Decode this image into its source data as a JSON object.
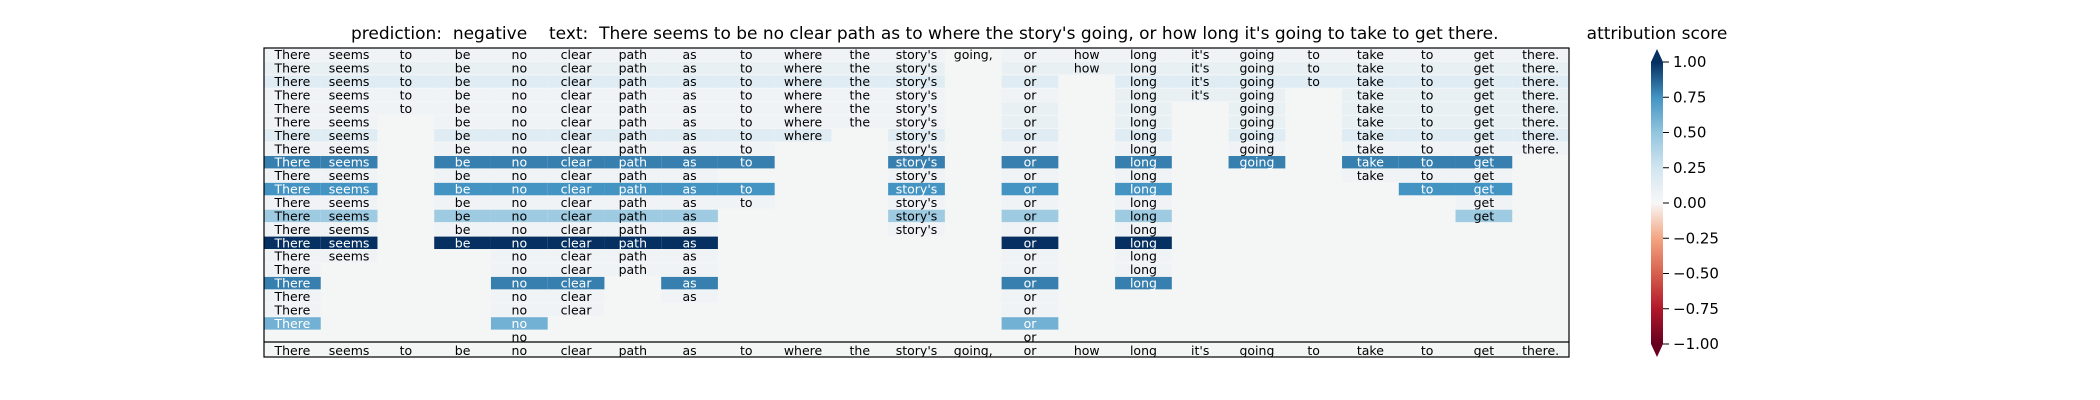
{
  "chart_data": {
    "type": "heatmap",
    "title_prediction": "prediction:  negative",
    "title_text": "text:  There seems to be no clear path as to where the story's going, or how long it's going to take to get there.",
    "colorbar_label": "attribution score",
    "colorbar_ticks": [
      "1.00",
      "0.75",
      "0.50",
      "0.25",
      "0.00",
      "−0.25",
      "−0.50",
      "−0.75",
      "−1.00"
    ],
    "colorbar_tick_values": [
      1.0,
      0.75,
      0.5,
      0.25,
      0.0,
      -0.25,
      -0.5,
      -0.75,
      -1.0
    ],
    "vlim": [
      -1.0,
      1.0
    ],
    "colormap": "RdBu",
    "colors": {
      "max": "#053061",
      "zero": "#f7f7f7",
      "min": "#67001f",
      "background": "#f4f6f6"
    },
    "tokens": [
      "There",
      "seems",
      "to",
      "be",
      "no",
      "clear",
      "path",
      "as",
      "to",
      "where",
      "the",
      "story's",
      "going,",
      "or",
      "how",
      "long",
      "it's",
      "going",
      "to",
      "take",
      "to",
      "get",
      "there."
    ],
    "rows": [
      {
        "shown": [
          1,
          1,
          1,
          1,
          1,
          1,
          1,
          1,
          1,
          1,
          1,
          1,
          1,
          1,
          1,
          1,
          1,
          1,
          1,
          1,
          1,
          1,
          1
        ],
        "scores": [
          0.05,
          0.05,
          0.05,
          0.05,
          0.05,
          0.05,
          0.05,
          0.05,
          0.05,
          0.05,
          0.05,
          0.05,
          0,
          0.05,
          0.05,
          0.05,
          0.05,
          0.05,
          0.05,
          0.05,
          0.05,
          0.05,
          0.05
        ]
      },
      {
        "shown": [
          1,
          1,
          1,
          1,
          1,
          1,
          1,
          1,
          1,
          1,
          1,
          1,
          0,
          1,
          1,
          1,
          1,
          1,
          1,
          1,
          1,
          1,
          1
        ],
        "scores": [
          0.1,
          0.1,
          0.1,
          0.1,
          0.1,
          0.1,
          0.1,
          0.1,
          0.1,
          0.1,
          0.1,
          0.1,
          0,
          0.1,
          0.1,
          0.1,
          0.1,
          0.1,
          0.1,
          0.1,
          0.1,
          0.1,
          0.1
        ]
      },
      {
        "shown": [
          1,
          1,
          1,
          1,
          1,
          1,
          1,
          1,
          1,
          1,
          1,
          1,
          0,
          1,
          0,
          1,
          1,
          1,
          1,
          1,
          1,
          1,
          1
        ],
        "scores": [
          0.15,
          0.15,
          0.15,
          0.15,
          0.15,
          0.15,
          0.15,
          0.15,
          0.15,
          0.15,
          0.15,
          0.15,
          0,
          0.15,
          0,
          0.15,
          0.15,
          0.15,
          0.15,
          0.15,
          0.15,
          0.15,
          0.15
        ]
      },
      {
        "shown": [
          1,
          1,
          1,
          1,
          1,
          1,
          1,
          1,
          1,
          1,
          1,
          1,
          0,
          1,
          0,
          1,
          1,
          1,
          0,
          1,
          1,
          1,
          1
        ],
        "scores": [
          0.05,
          0.05,
          0.05,
          0.05,
          0.05,
          0.05,
          0.05,
          0.05,
          0.05,
          0.05,
          0.05,
          0.05,
          0,
          0.05,
          0,
          0.1,
          0.1,
          0.1,
          0,
          0.1,
          0.1,
          0.1,
          0.1
        ]
      },
      {
        "shown": [
          1,
          1,
          1,
          1,
          1,
          1,
          1,
          1,
          1,
          1,
          1,
          1,
          0,
          1,
          0,
          1,
          0,
          1,
          0,
          1,
          1,
          1,
          1
        ],
        "scores": [
          0.05,
          0.05,
          0.05,
          0.05,
          0.05,
          0.05,
          0.05,
          0.05,
          0.05,
          0.05,
          0.05,
          0.05,
          0,
          0.1,
          0,
          0.1,
          0,
          0.1,
          0,
          0.1,
          0.1,
          0.1,
          0.1
        ]
      },
      {
        "shown": [
          1,
          1,
          0,
          1,
          1,
          1,
          1,
          1,
          1,
          1,
          1,
          1,
          0,
          1,
          0,
          1,
          0,
          1,
          0,
          1,
          1,
          1,
          1
        ],
        "scores": [
          0.05,
          0.05,
          0,
          0.05,
          0.05,
          0.05,
          0.05,
          0.05,
          0.05,
          0.05,
          0.05,
          0.05,
          0,
          0.1,
          0,
          0.1,
          0,
          0.1,
          0,
          0.1,
          0.1,
          0.1,
          0.1
        ]
      },
      {
        "shown": [
          1,
          1,
          0,
          1,
          1,
          1,
          1,
          1,
          1,
          1,
          0,
          1,
          0,
          1,
          0,
          1,
          0,
          1,
          0,
          1,
          1,
          1,
          1
        ],
        "scores": [
          0.15,
          0.15,
          0,
          0.15,
          0.15,
          0.15,
          0.15,
          0.15,
          0.15,
          0.15,
          0,
          0.15,
          0,
          0.15,
          0,
          0.15,
          0,
          0.15,
          0,
          0.15,
          0.15,
          0.15,
          0.15
        ]
      },
      {
        "shown": [
          1,
          1,
          0,
          1,
          1,
          1,
          1,
          1,
          1,
          0,
          0,
          1,
          0,
          1,
          0,
          1,
          0,
          1,
          0,
          1,
          1,
          1,
          1
        ],
        "scores": [
          0.05,
          0.05,
          0,
          0.05,
          0.05,
          0.05,
          0.05,
          0.05,
          0.05,
          0,
          0,
          0.05,
          0,
          0.05,
          0,
          0.05,
          0,
          0.05,
          0,
          0.05,
          0.05,
          0.05,
          0.05
        ]
      },
      {
        "shown": [
          1,
          1,
          0,
          1,
          1,
          1,
          1,
          1,
          1,
          0,
          0,
          1,
          0,
          1,
          0,
          1,
          0,
          1,
          0,
          1,
          1,
          1,
          0
        ],
        "scores": [
          0.8,
          0.8,
          0,
          0.8,
          0.8,
          0.8,
          0.8,
          0.8,
          0.8,
          0,
          0,
          0.8,
          0,
          0.8,
          0,
          0.8,
          0,
          0.8,
          0,
          0.8,
          0.8,
          0.8,
          0
        ]
      },
      {
        "shown": [
          1,
          1,
          0,
          1,
          1,
          1,
          1,
          1,
          0,
          0,
          0,
          1,
          0,
          1,
          0,
          1,
          0,
          0,
          0,
          1,
          1,
          1,
          0
        ],
        "scores": [
          0.05,
          0.05,
          0,
          0.05,
          0.05,
          0.05,
          0.05,
          0.05,
          0,
          0,
          0,
          0.05,
          0,
          0.05,
          0,
          0.05,
          0,
          0,
          0,
          0.05,
          0.05,
          0.05,
          0
        ]
      },
      {
        "shown": [
          1,
          1,
          0,
          1,
          1,
          1,
          1,
          1,
          1,
          0,
          0,
          1,
          0,
          1,
          0,
          1,
          0,
          0,
          0,
          0,
          1,
          1,
          0
        ],
        "scores": [
          0.75,
          0.75,
          0,
          0.75,
          0.75,
          0.75,
          0.75,
          0.75,
          0.75,
          0,
          0,
          0.75,
          0,
          0.75,
          0,
          0.75,
          0,
          0,
          0,
          0,
          0.75,
          0.75,
          0
        ]
      },
      {
        "shown": [
          1,
          1,
          0,
          1,
          1,
          1,
          1,
          1,
          1,
          0,
          0,
          1,
          0,
          1,
          0,
          1,
          0,
          0,
          0,
          0,
          0,
          1,
          0
        ],
        "scores": [
          0.05,
          0.05,
          0,
          0.05,
          0.05,
          0.05,
          0.05,
          0.05,
          0.05,
          0,
          0,
          0.05,
          0,
          0.05,
          0,
          0.05,
          0,
          0,
          0,
          0,
          0,
          0.05,
          0
        ]
      },
      {
        "shown": [
          1,
          1,
          0,
          1,
          1,
          1,
          1,
          1,
          0,
          0,
          0,
          1,
          0,
          1,
          0,
          1,
          0,
          0,
          0,
          0,
          0,
          1,
          0
        ],
        "scores": [
          0.45,
          0.45,
          0,
          0.45,
          0.45,
          0.45,
          0.45,
          0.45,
          0,
          0,
          0,
          0.45,
          0,
          0.45,
          0,
          0.45,
          0,
          0,
          0,
          0,
          0,
          0.45,
          0
        ]
      },
      {
        "shown": [
          1,
          1,
          0,
          1,
          1,
          1,
          1,
          1,
          0,
          0,
          0,
          1,
          0,
          1,
          0,
          1,
          0,
          0,
          0,
          0,
          0,
          0,
          0
        ],
        "scores": [
          0.05,
          0.05,
          0,
          0.05,
          0.05,
          0.05,
          0.05,
          0.05,
          0,
          0,
          0,
          0.05,
          0,
          0.05,
          0,
          0.05,
          0,
          0,
          0,
          0,
          0,
          0,
          0
        ]
      },
      {
        "shown": [
          1,
          1,
          0,
          1,
          1,
          1,
          1,
          1,
          0,
          0,
          0,
          0,
          0,
          1,
          0,
          1,
          0,
          0,
          0,
          0,
          0,
          0,
          0
        ],
        "scores": [
          1.0,
          1.0,
          0,
          1.0,
          1.0,
          1.0,
          1.0,
          1.0,
          0,
          0,
          0,
          0,
          0,
          1.0,
          0,
          1.0,
          0,
          0,
          0,
          0,
          0,
          0,
          0
        ]
      },
      {
        "shown": [
          1,
          1,
          0,
          0,
          1,
          1,
          1,
          1,
          0,
          0,
          0,
          0,
          0,
          1,
          0,
          1,
          0,
          0,
          0,
          0,
          0,
          0,
          0
        ],
        "scores": [
          0.05,
          0.05,
          0,
          0,
          0.05,
          0.05,
          0.05,
          0.05,
          0,
          0,
          0,
          0,
          0,
          0.05,
          0,
          0.05,
          0,
          0,
          0,
          0,
          0,
          0,
          0
        ]
      },
      {
        "shown": [
          1,
          0,
          0,
          0,
          1,
          1,
          1,
          1,
          0,
          0,
          0,
          0,
          0,
          1,
          0,
          1,
          0,
          0,
          0,
          0,
          0,
          0,
          0
        ],
        "scores": [
          0.05,
          0,
          0,
          0,
          0.05,
          0.05,
          0.05,
          0.05,
          0,
          0,
          0,
          0,
          0,
          0.05,
          0,
          0.05,
          0,
          0,
          0,
          0,
          0,
          0,
          0
        ]
      },
      {
        "shown": [
          1,
          0,
          0,
          0,
          1,
          1,
          0,
          1,
          0,
          0,
          0,
          0,
          0,
          1,
          0,
          1,
          0,
          0,
          0,
          0,
          0,
          0,
          0
        ],
        "scores": [
          0.8,
          0,
          0,
          0,
          0.8,
          0.8,
          0,
          0.8,
          0,
          0,
          0,
          0,
          0,
          0.8,
          0,
          0.8,
          0,
          0,
          0,
          0,
          0,
          0,
          0
        ]
      },
      {
        "shown": [
          1,
          0,
          0,
          0,
          1,
          1,
          0,
          1,
          0,
          0,
          0,
          0,
          0,
          1,
          0,
          0,
          0,
          0,
          0,
          0,
          0,
          0,
          0
        ],
        "scores": [
          0.05,
          0,
          0,
          0,
          0.05,
          0.05,
          0,
          0.05,
          0,
          0,
          0,
          0,
          0,
          0.05,
          0,
          0,
          0,
          0,
          0,
          0,
          0,
          0,
          0
        ]
      },
      {
        "shown": [
          1,
          0,
          0,
          0,
          1,
          1,
          0,
          0,
          0,
          0,
          0,
          0,
          0,
          1,
          0,
          0,
          0,
          0,
          0,
          0,
          0,
          0,
          0
        ],
        "scores": [
          0.05,
          0,
          0,
          0,
          0.05,
          0.05,
          0,
          0,
          0,
          0,
          0,
          0,
          0,
          0.05,
          0,
          0,
          0,
          0,
          0,
          0,
          0,
          0,
          0
        ]
      },
      {
        "shown": [
          1,
          0,
          0,
          0,
          1,
          0,
          0,
          0,
          0,
          0,
          0,
          0,
          0,
          1,
          0,
          0,
          0,
          0,
          0,
          0,
          0,
          0,
          0
        ],
        "scores": [
          0.6,
          0,
          0,
          0,
          0.6,
          0,
          0,
          0,
          0,
          0,
          0,
          0,
          0,
          0.6,
          0,
          0,
          0,
          0,
          0,
          0,
          0,
          0,
          0
        ]
      },
      {
        "shown": [
          0,
          0,
          0,
          0,
          1,
          0,
          0,
          0,
          0,
          0,
          0,
          0,
          0,
          1,
          0,
          0,
          0,
          0,
          0,
          0,
          0,
          0,
          0
        ],
        "scores": [
          0,
          0,
          0,
          0,
          0,
          0,
          0,
          0,
          0,
          0,
          0,
          0,
          0,
          0,
          0,
          0,
          0,
          0,
          0,
          0,
          0,
          0,
          0
        ]
      },
      {
        "shown": [
          1,
          1,
          1,
          1,
          1,
          1,
          1,
          1,
          1,
          1,
          1,
          1,
          1,
          1,
          1,
          1,
          1,
          1,
          1,
          1,
          1,
          1,
          1
        ],
        "scores": [
          0,
          0,
          0,
          0,
          0,
          0,
          0,
          0,
          0,
          0,
          0,
          0,
          0,
          0,
          0,
          0,
          0,
          0,
          0,
          0,
          0,
          0,
          0
        ]
      }
    ]
  }
}
